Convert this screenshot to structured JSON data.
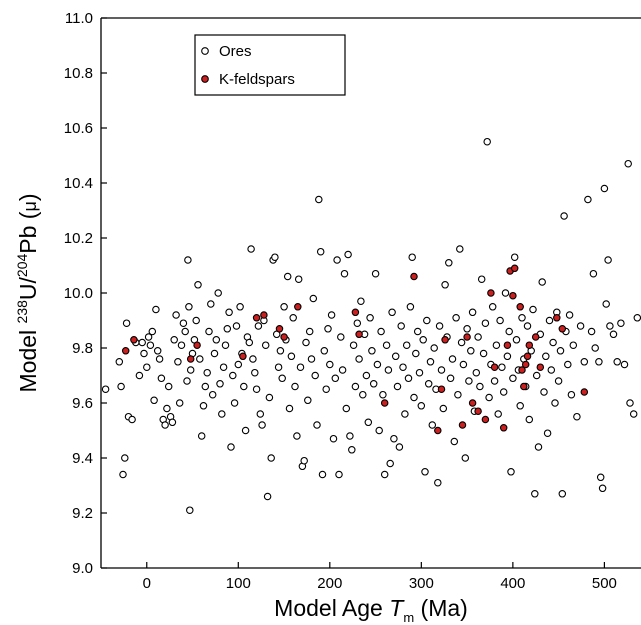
{
  "chart_data": {
    "type": "scatter",
    "xlabel": {
      "prefix": "Model Age ",
      "var": "T",
      "sub": "m",
      "suffix": " (Ma)"
    },
    "ylabel": {
      "prefix": "Model ",
      "sup1": "238",
      "mid1": "U/",
      "sup2": "204",
      "mid2": "Pb (",
      "mu": "μ",
      "suffix": ")"
    },
    "xlim": [
      -50,
      540
    ],
    "ylim": [
      9.0,
      11.0
    ],
    "xticks": [
      0,
      100,
      200,
      300,
      400,
      500
    ],
    "yticks": [
      "9.0",
      "9.2",
      "9.4",
      "9.6",
      "9.8",
      "10.0",
      "10.2",
      "10.4",
      "10.6",
      "10.8",
      "11.0"
    ],
    "grid": false,
    "legend_position": "top-left",
    "colors": {
      "ores_fill": "#ffffff",
      "kfeldspar_fill": "#cc1f1f",
      "marker_edge": "#000000"
    },
    "series": [
      {
        "name": "Ores",
        "marker": "open-circle",
        "points": [
          [
            -45,
            9.65
          ],
          [
            -30,
            9.75
          ],
          [
            -28,
            9.66
          ],
          [
            -26,
            9.34
          ],
          [
            -24,
            9.4
          ],
          [
            -22,
            9.89
          ],
          [
            -20,
            9.55
          ],
          [
            -16,
            9.54
          ],
          [
            -12,
            9.82
          ],
          [
            -8,
            9.7
          ],
          [
            -5,
            9.82
          ],
          [
            -3,
            9.78
          ],
          [
            0,
            9.73
          ],
          [
            2,
            9.84
          ],
          [
            4,
            9.81
          ],
          [
            6,
            9.86
          ],
          [
            8,
            9.61
          ],
          [
            10,
            9.94
          ],
          [
            12,
            9.79
          ],
          [
            14,
            9.76
          ],
          [
            16,
            9.69
          ],
          [
            18,
            9.54
          ],
          [
            20,
            9.52
          ],
          [
            22,
            9.58
          ],
          [
            24,
            9.66
          ],
          [
            26,
            9.55
          ],
          [
            28,
            9.53
          ],
          [
            30,
            9.83
          ],
          [
            32,
            9.92
          ],
          [
            34,
            9.75
          ],
          [
            36,
            9.6
          ],
          [
            38,
            9.81
          ],
          [
            40,
            9.89
          ],
          [
            42,
            9.86
          ],
          [
            44,
            9.68
          ],
          [
            45,
            10.12
          ],
          [
            46,
            9.95
          ],
          [
            47,
            9.21
          ],
          [
            48,
            9.72
          ],
          [
            50,
            9.78
          ],
          [
            52,
            9.83
          ],
          [
            54,
            9.9
          ],
          [
            56,
            10.03
          ],
          [
            58,
            9.76
          ],
          [
            60,
            9.48
          ],
          [
            62,
            9.59
          ],
          [
            64,
            9.66
          ],
          [
            66,
            9.71
          ],
          [
            68,
            9.86
          ],
          [
            70,
            9.96
          ],
          [
            72,
            9.63
          ],
          [
            74,
            9.78
          ],
          [
            76,
            9.83
          ],
          [
            78,
            10.0
          ],
          [
            80,
            9.67
          ],
          [
            82,
            9.56
          ],
          [
            84,
            9.73
          ],
          [
            86,
            9.81
          ],
          [
            88,
            9.87
          ],
          [
            90,
            9.93
          ],
          [
            92,
            9.44
          ],
          [
            94,
            9.7
          ],
          [
            96,
            9.6
          ],
          [
            98,
            9.88
          ],
          [
            100,
            9.74
          ],
          [
            102,
            9.95
          ],
          [
            104,
            9.78
          ],
          [
            106,
            9.66
          ],
          [
            108,
            9.5
          ],
          [
            110,
            9.84
          ],
          [
            112,
            9.82
          ],
          [
            114,
            10.16
          ],
          [
            116,
            9.76
          ],
          [
            118,
            9.71
          ],
          [
            120,
            9.65
          ],
          [
            122,
            9.88
          ],
          [
            124,
            9.56
          ],
          [
            126,
            9.52
          ],
          [
            128,
            9.9
          ],
          [
            130,
            9.81
          ],
          [
            132,
            9.26
          ],
          [
            134,
            9.62
          ],
          [
            136,
            9.4
          ],
          [
            138,
            10.12
          ],
          [
            140,
            10.13
          ],
          [
            142,
            9.85
          ],
          [
            144,
            9.73
          ],
          [
            146,
            9.79
          ],
          [
            148,
            9.69
          ],
          [
            150,
            9.95
          ],
          [
            152,
            9.83
          ],
          [
            154,
            10.06
          ],
          [
            156,
            9.58
          ],
          [
            158,
            9.77
          ],
          [
            160,
            9.91
          ],
          [
            162,
            9.66
          ],
          [
            164,
            9.48
          ],
          [
            166,
            10.05
          ],
          [
            168,
            9.73
          ],
          [
            170,
            9.37
          ],
          [
            172,
            9.39
          ],
          [
            174,
            9.82
          ],
          [
            176,
            9.61
          ],
          [
            178,
            9.86
          ],
          [
            180,
            9.76
          ],
          [
            182,
            9.98
          ],
          [
            184,
            9.7
          ],
          [
            186,
            9.52
          ],
          [
            188,
            10.34
          ],
          [
            190,
            10.15
          ],
          [
            192,
            9.34
          ],
          [
            194,
            9.79
          ],
          [
            196,
            9.65
          ],
          [
            198,
            9.87
          ],
          [
            200,
            9.74
          ],
          [
            202,
            9.92
          ],
          [
            204,
            9.47
          ],
          [
            206,
            9.69
          ],
          [
            208,
            10.12
          ],
          [
            210,
            9.34
          ],
          [
            212,
            9.84
          ],
          [
            214,
            9.72
          ],
          [
            216,
            10.07
          ],
          [
            218,
            9.58
          ],
          [
            220,
            10.14
          ],
          [
            222,
            9.48
          ],
          [
            224,
            9.43
          ],
          [
            226,
            9.81
          ],
          [
            228,
            9.66
          ],
          [
            230,
            9.89
          ],
          [
            232,
            9.76
          ],
          [
            234,
            9.97
          ],
          [
            236,
            9.63
          ],
          [
            238,
            9.85
          ],
          [
            240,
            9.7
          ],
          [
            242,
            9.53
          ],
          [
            244,
            9.91
          ],
          [
            246,
            9.79
          ],
          [
            248,
            9.67
          ],
          [
            250,
            10.07
          ],
          [
            252,
            9.74
          ],
          [
            254,
            9.5
          ],
          [
            256,
            9.86
          ],
          [
            258,
            9.63
          ],
          [
            260,
            9.34
          ],
          [
            262,
            9.81
          ],
          [
            264,
            9.72
          ],
          [
            266,
            9.38
          ],
          [
            268,
            9.93
          ],
          [
            270,
            9.47
          ],
          [
            272,
            9.77
          ],
          [
            274,
            9.66
          ],
          [
            276,
            9.44
          ],
          [
            278,
            9.88
          ],
          [
            280,
            9.73
          ],
          [
            282,
            9.56
          ],
          [
            284,
            9.81
          ],
          [
            286,
            9.69
          ],
          [
            288,
            9.95
          ],
          [
            290,
            10.13
          ],
          [
            292,
            9.62
          ],
          [
            294,
            9.78
          ],
          [
            296,
            9.86
          ],
          [
            298,
            9.71
          ],
          [
            300,
            9.59
          ],
          [
            302,
            9.83
          ],
          [
            304,
            9.35
          ],
          [
            306,
            9.9
          ],
          [
            308,
            9.67
          ],
          [
            310,
            9.75
          ],
          [
            312,
            9.52
          ],
          [
            314,
            9.8
          ],
          [
            316,
            9.65
          ],
          [
            318,
            9.31
          ],
          [
            320,
            9.88
          ],
          [
            322,
            9.72
          ],
          [
            324,
            9.58
          ],
          [
            326,
            10.03
          ],
          [
            328,
            9.84
          ],
          [
            330,
            10.11
          ],
          [
            332,
            9.69
          ],
          [
            334,
            9.76
          ],
          [
            336,
            9.46
          ],
          [
            338,
            9.91
          ],
          [
            340,
            9.63
          ],
          [
            342,
            10.16
          ],
          [
            344,
            9.82
          ],
          [
            346,
            9.74
          ],
          [
            348,
            9.4
          ],
          [
            350,
            9.87
          ],
          [
            352,
            9.68
          ],
          [
            354,
            9.79
          ],
          [
            356,
            9.93
          ],
          [
            358,
            9.57
          ],
          [
            360,
            9.71
          ],
          [
            362,
            9.84
          ],
          [
            364,
            9.66
          ],
          [
            366,
            10.05
          ],
          [
            368,
            9.78
          ],
          [
            370,
            9.89
          ],
          [
            372,
            10.55
          ],
          [
            374,
            9.62
          ],
          [
            376,
            9.74
          ],
          [
            378,
            9.95
          ],
          [
            380,
            9.68
          ],
          [
            382,
            9.81
          ],
          [
            384,
            9.56
          ],
          [
            386,
            9.9
          ],
          [
            388,
            9.73
          ],
          [
            390,
            9.64
          ],
          [
            392,
            10.0
          ],
          [
            394,
            9.77
          ],
          [
            396,
            9.86
          ],
          [
            398,
            9.35
          ],
          [
            400,
            9.69
          ],
          [
            402,
            10.13
          ],
          [
            404,
            9.83
          ],
          [
            406,
            9.72
          ],
          [
            408,
            9.59
          ],
          [
            410,
            9.91
          ],
          [
            412,
            9.76
          ],
          [
            414,
            9.66
          ],
          [
            416,
            9.88
          ],
          [
            418,
            9.54
          ],
          [
            420,
            9.79
          ],
          [
            422,
            9.94
          ],
          [
            424,
            9.27
          ],
          [
            426,
            9.7
          ],
          [
            428,
            9.44
          ],
          [
            430,
            9.85
          ],
          [
            432,
            10.04
          ],
          [
            434,
            9.64
          ],
          [
            436,
            9.77
          ],
          [
            438,
            9.49
          ],
          [
            440,
            9.9
          ],
          [
            442,
            9.72
          ],
          [
            444,
            9.82
          ],
          [
            446,
            9.6
          ],
          [
            448,
            9.93
          ],
          [
            450,
            9.68
          ],
          [
            452,
            9.79
          ],
          [
            454,
            9.27
          ],
          [
            456,
            10.28
          ],
          [
            458,
            9.86
          ],
          [
            460,
            9.74
          ],
          [
            462,
            9.92
          ],
          [
            464,
            9.63
          ],
          [
            466,
            9.81
          ],
          [
            470,
            9.55
          ],
          [
            474,
            9.88
          ],
          [
            478,
            9.75
          ],
          [
            482,
            10.34
          ],
          [
            486,
            9.86
          ],
          [
            488,
            10.07
          ],
          [
            490,
            9.8
          ],
          [
            494,
            9.75
          ],
          [
            496,
            9.33
          ],
          [
            498,
            9.29
          ],
          [
            500,
            10.38
          ],
          [
            502,
            9.96
          ],
          [
            504,
            10.12
          ],
          [
            506,
            9.88
          ],
          [
            510,
            9.85
          ],
          [
            514,
            9.75
          ],
          [
            518,
            9.89
          ],
          [
            522,
            9.74
          ],
          [
            526,
            10.47
          ],
          [
            528,
            9.6
          ],
          [
            532,
            9.56
          ],
          [
            536,
            9.91
          ]
        ]
      },
      {
        "name": "K-feldspars",
        "marker": "filled-circle",
        "points": [
          [
            -23,
            9.79
          ],
          [
            -14,
            9.83
          ],
          [
            48,
            9.76
          ],
          [
            55,
            9.81
          ],
          [
            105,
            9.77
          ],
          [
            120,
            9.91
          ],
          [
            128,
            9.92
          ],
          [
            145,
            9.87
          ],
          [
            150,
            9.84
          ],
          [
            165,
            9.95
          ],
          [
            228,
            9.93
          ],
          [
            232,
            9.85
          ],
          [
            260,
            9.6
          ],
          [
            292,
            10.06
          ],
          [
            318,
            9.5
          ],
          [
            322,
            9.65
          ],
          [
            326,
            9.83
          ],
          [
            345,
            9.52
          ],
          [
            350,
            9.84
          ],
          [
            356,
            9.6
          ],
          [
            362,
            9.57
          ],
          [
            370,
            9.54
          ],
          [
            376,
            10.0
          ],
          [
            380,
            9.73
          ],
          [
            390,
            9.51
          ],
          [
            394,
            9.81
          ],
          [
            397,
            10.08
          ],
          [
            400,
            9.99
          ],
          [
            402,
            10.09
          ],
          [
            408,
            9.95
          ],
          [
            410,
            9.72
          ],
          [
            412,
            9.66
          ],
          [
            414,
            9.74
          ],
          [
            416,
            9.77
          ],
          [
            425,
            9.84
          ],
          [
            430,
            9.73
          ],
          [
            448,
            9.91
          ],
          [
            454,
            9.87
          ],
          [
            478,
            9.64
          ],
          [
            418,
            9.81
          ]
        ]
      }
    ]
  }
}
